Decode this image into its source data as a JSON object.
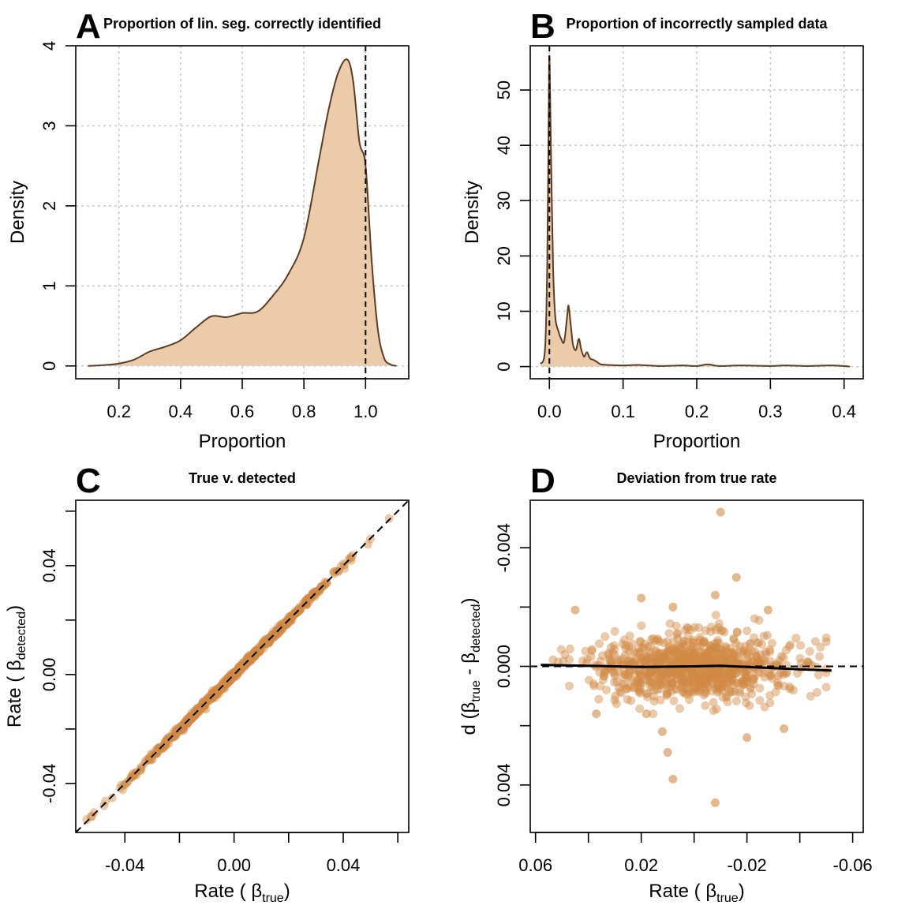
{
  "chart_data": [
    {
      "id": "A",
      "type": "area",
      "panel_letter": "A",
      "title": "Proportion of lin. seg. correctly identified",
      "xlabel": "Proportion",
      "ylabel": "Density",
      "xlim": [
        0.06,
        1.14
      ],
      "ylim": [
        -0.16,
        4.0
      ],
      "xticks": [
        0.2,
        0.4,
        0.6,
        0.8,
        1.0
      ],
      "xtick_labels": [
        "0.2",
        "0.4",
        "0.6",
        "0.8",
        "1.0"
      ],
      "yticks": [
        0,
        1,
        2,
        3,
        4
      ],
      "ytick_labels": [
        "0",
        "1",
        "2",
        "3",
        "4"
      ],
      "grid": true,
      "vline": 1.0,
      "fill_color": "#ebcbaa",
      "line_color": "#5c3d22",
      "x": [
        0.1,
        0.15,
        0.2,
        0.25,
        0.3,
        0.35,
        0.4,
        0.45,
        0.5,
        0.55,
        0.6,
        0.65,
        0.7,
        0.75,
        0.8,
        0.85,
        0.88,
        0.91,
        0.94,
        0.96,
        0.98,
        1.0,
        1.02,
        1.04,
        1.06,
        1.08,
        1.1
      ],
      "y": [
        0.0,
        0.01,
        0.03,
        0.08,
        0.18,
        0.24,
        0.32,
        0.48,
        0.62,
        0.61,
        0.66,
        0.68,
        0.88,
        1.15,
        1.6,
        2.6,
        3.2,
        3.65,
        3.83,
        3.55,
        2.8,
        2.5,
        1.3,
        0.45,
        0.1,
        0.02,
        0.0
      ]
    },
    {
      "id": "B",
      "type": "area",
      "panel_letter": "B",
      "title": "Proportion of incorrectly sampled data",
      "xlabel": "Proportion",
      "ylabel": "Density",
      "xlim": [
        -0.026,
        0.426
      ],
      "ylim": [
        -2.2,
        58.0
      ],
      "xticks": [
        0.0,
        0.1,
        0.2,
        0.3,
        0.4
      ],
      "xtick_labels": [
        "0.0",
        "0.1",
        "0.2",
        "0.3",
        "0.4"
      ],
      "yticks": [
        0,
        10,
        20,
        30,
        40,
        50
      ],
      "ytick_labels": [
        "0",
        "10",
        "20",
        "30",
        "40",
        "50"
      ],
      "grid": true,
      "vline": 0.0,
      "fill_color": "#ebcbaa",
      "line_color": "#5c3d22",
      "x": [
        -0.012,
        -0.006,
        -0.003,
        -0.001,
        0.0,
        0.002,
        0.005,
        0.008,
        0.012,
        0.016,
        0.02,
        0.024,
        0.026,
        0.029,
        0.032,
        0.036,
        0.04,
        0.043,
        0.047,
        0.051,
        0.055,
        0.06,
        0.065,
        0.07,
        0.08,
        0.1,
        0.12,
        0.15,
        0.18,
        0.2,
        0.215,
        0.23,
        0.26,
        0.3,
        0.32,
        0.35,
        0.38,
        0.4,
        0.408
      ],
      "y": [
        0.5,
        3.0,
        18.0,
        45.0,
        56.0,
        40.0,
        18.0,
        9.0,
        6.5,
        5.0,
        4.5,
        9.0,
        11.0,
        7.5,
        4.0,
        3.0,
        5.0,
        3.2,
        1.8,
        2.6,
        1.5,
        1.2,
        0.8,
        0.4,
        0.3,
        0.2,
        0.3,
        0.1,
        0.2,
        0.1,
        0.4,
        0.1,
        0.2,
        0.1,
        0.2,
        0.1,
        0.2,
        0.1,
        0.0
      ]
    },
    {
      "id": "C",
      "type": "scatter",
      "panel_letter": "C",
      "title": "True v. detected",
      "xlabel": "Rate ( βtrue)",
      "ylabel": "Rate ( βdetected)",
      "xlabel_parts": [
        "Rate ( ",
        "β",
        "true",
        ")"
      ],
      "ylabel_parts": [
        "Rate ( ",
        "β",
        "detected",
        ")"
      ],
      "xlim": [
        -0.058,
        0.064
      ],
      "ylim": [
        -0.058,
        0.064
      ],
      "xticks": [
        -0.04,
        0.0,
        0.04
      ],
      "xtick_labels": [
        "-0.04",
        "0.00",
        "0.04"
      ],
      "xminor": [
        -0.02,
        0.02,
        0.06
      ],
      "yticks": [
        -0.04,
        0.0,
        0.04
      ],
      "ytick_labels": [
        "-0.04",
        "0.00",
        "0.04"
      ],
      "yminor": [
        -0.02,
        0.02,
        0.06
      ],
      "grid": false,
      "reference_line": "y = x",
      "point_color": "#d08a45",
      "point_count": 800
    },
    {
      "id": "D",
      "type": "scatter",
      "panel_letter": "D",
      "title": "Deviation from true rate",
      "xlabel": "Rate ( βtrue)",
      "ylabel": "d (βtrue - βdetected)",
      "xlabel_parts": [
        "Rate ( ",
        "β",
        "true",
        ")"
      ],
      "ylabel_parts": [
        "d (",
        "β",
        "true",
        " - ",
        "β",
        "detected",
        ")"
      ],
      "xlim": [
        0.062,
        -0.064
      ],
      "ylim": [
        0.0056,
        -0.0056
      ],
      "xticks": [
        0.06,
        0.02,
        -0.02,
        -0.06
      ],
      "xtick_labels": [
        "0.06",
        "0.02",
        "-0.02",
        "-0.06"
      ],
      "xminor": [
        0.04,
        0.0,
        -0.04
      ],
      "yticks": [
        -0.004,
        0.0,
        0.004
      ],
      "ytick_labels": [
        "-0.004",
        "0.000",
        "0.004"
      ],
      "yminor": [
        -0.002,
        0.002
      ],
      "grid": false,
      "hline": 0.0,
      "point_color": "#d08a45",
      "trend_color": "#000000",
      "trend_x": [
        0.058,
        0.04,
        0.02,
        0.0,
        -0.01,
        -0.02,
        -0.04,
        -0.052
      ],
      "trend_y": [
        -5e-05,
        -2e-05,
        2e-05,
        0.0,
        -2e-05,
        2e-05,
        0.0001,
        0.00014
      ],
      "outliers": [
        {
          "x": -0.01,
          "y": -0.0052
        },
        {
          "x": -0.016,
          "y": -0.003
        },
        {
          "x": -0.008,
          "y": -0.0024
        },
        {
          "x": 0.02,
          "y": -0.0023
        },
        {
          "x": 0.045,
          "y": -0.0019
        },
        {
          "x": -0.028,
          "y": -0.0019
        },
        {
          "x": 0.008,
          "y": -0.002
        },
        {
          "x": 0.01,
          "y": 0.0029
        },
        {
          "x": 0.008,
          "y": 0.0038
        },
        {
          "x": -0.008,
          "y": 0.0046
        },
        {
          "x": 0.012,
          "y": 0.0022
        },
        {
          "x": -0.02,
          "y": 0.0024
        },
        {
          "x": -0.034,
          "y": 0.0021
        },
        {
          "x": 0.037,
          "y": 0.0016
        },
        {
          "x": 0.018,
          "y": 0.0016
        }
      ],
      "point_count": 900
    }
  ]
}
